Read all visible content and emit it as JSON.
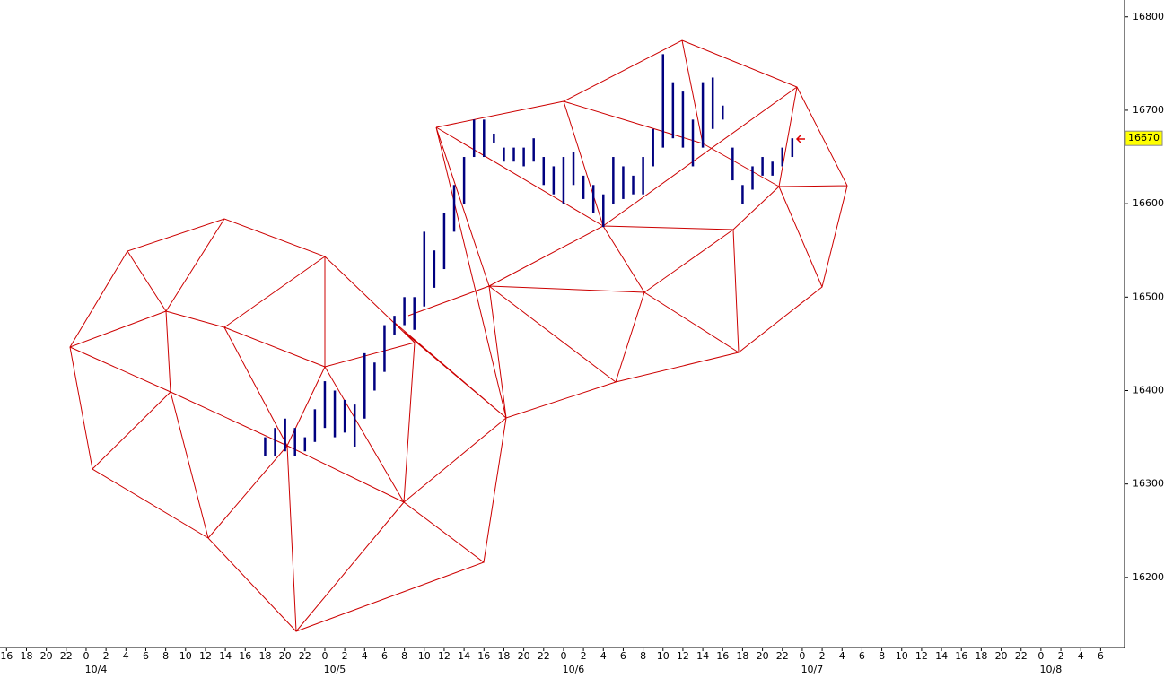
{
  "chart_data": {
    "type": "ohlc",
    "x": [
      18,
      19,
      20,
      21,
      22,
      23,
      24,
      25,
      26,
      27,
      28,
      29,
      30,
      31,
      32,
      33,
      34,
      35,
      36,
      37,
      38,
      39,
      40,
      41,
      42,
      43,
      44,
      45,
      46,
      47,
      48,
      49,
      50,
      51,
      52,
      53,
      54,
      55,
      56,
      57,
      58,
      59,
      60,
      61,
      62,
      63,
      64,
      65,
      66,
      67,
      68,
      69,
      70,
      71
    ],
    "series": [
      {
        "color": "#000080",
        "high": [
          16350,
          16360,
          16370,
          16360,
          16350,
          16380,
          16410,
          16400,
          16390,
          16385,
          16440,
          16430,
          16470,
          16480,
          16500,
          16500,
          16570,
          16550,
          16590,
          16620,
          16650,
          16690,
          16690,
          16675,
          16660,
          16660,
          16660,
          16670,
          16650,
          16640,
          16650,
          16655,
          16630,
          16620,
          16610,
          16650,
          16640,
          16630,
          16650,
          16680,
          16760,
          16730,
          16720,
          16690,
          16730,
          16735,
          16705,
          16660,
          16620,
          16640,
          16650,
          16645,
          16660,
          16670
        ],
        "low": [
          16330,
          16330,
          16335,
          16330,
          16335,
          16345,
          16360,
          16350,
          16355,
          16340,
          16370,
          16400,
          16420,
          16460,
          16470,
          16465,
          16490,
          16510,
          16530,
          16570,
          16600,
          16650,
          16650,
          16665,
          16645,
          16645,
          16640,
          16645,
          16620,
          16610,
          16600,
          16620,
          16605,
          16590,
          16575,
          16600,
          16605,
          16610,
          16610,
          16640,
          16660,
          16670,
          16660,
          16640,
          16660,
          16680,
          16690,
          16625,
          16600,
          16615,
          16630,
          16630,
          16640,
          16650
        ]
      }
    ],
    "ylim": [
      16125,
      16818
    ],
    "yticks": [
      16200,
      16300,
      16400,
      16500,
      16600,
      16700,
      16800
    ],
    "xlim": [
      -8.66,
      104.4
    ],
    "xticks": [
      {
        "value": -8,
        "label": "16"
      },
      {
        "value": -6,
        "label": "18"
      },
      {
        "value": -4,
        "label": "20"
      },
      {
        "value": -2,
        "label": "22"
      },
      0,
      2,
      4,
      6,
      8,
      10,
      12,
      14,
      16,
      18,
      20,
      22,
      {
        "value": 24,
        "label": "0"
      },
      {
        "value": 26,
        "label": "2"
      },
      {
        "value": 28,
        "label": "4"
      },
      {
        "value": 30,
        "label": "6"
      },
      {
        "value": 32,
        "label": "8"
      },
      {
        "value": 34,
        "label": "10"
      },
      {
        "value": 36,
        "label": "12"
      },
      {
        "value": 38,
        "label": "14"
      },
      {
        "value": 40,
        "label": "16"
      },
      {
        "value": 42,
        "label": "18"
      },
      {
        "value": 44,
        "label": "20"
      },
      {
        "value": 46,
        "label": "22"
      },
      {
        "value": 48,
        "label": "0"
      },
      {
        "value": 50,
        "label": "2"
      },
      {
        "value": 52,
        "label": "4"
      },
      {
        "value": 54,
        "label": "6"
      },
      {
        "value": 56,
        "label": "8"
      },
      {
        "value": 58,
        "label": "10"
      },
      {
        "value": 60,
        "label": "12"
      },
      {
        "value": 62,
        "label": "14"
      },
      {
        "value": 64,
        "label": "16"
      },
      {
        "value": 66,
        "label": "18"
      },
      {
        "value": 68,
        "label": "20"
      },
      {
        "value": 70,
        "label": "22"
      },
      {
        "value": 72,
        "label": "0"
      },
      {
        "value": 74,
        "label": "2"
      },
      {
        "value": 76,
        "label": "4"
      },
      {
        "value": 78,
        "label": "6"
      },
      {
        "value": 80,
        "label": "8"
      },
      {
        "value": 82,
        "label": "10"
      },
      {
        "value": 84,
        "label": "12"
      },
      {
        "value": 86,
        "label": "14"
      },
      {
        "value": 88,
        "label": "16"
      },
      {
        "value": 90,
        "label": "18"
      },
      {
        "value": 92,
        "label": "20"
      },
      {
        "value": 94,
        "label": "22"
      },
      {
        "value": 96,
        "label": "0"
      },
      {
        "value": 98,
        "label": "2"
      },
      {
        "value": 100,
        "label": "4"
      },
      {
        "value": 102,
        "label": "6"
      }
    ],
    "date_labels": [
      {
        "value": 0,
        "label": "10/4"
      },
      {
        "value": 24,
        "label": "10/5"
      },
      {
        "value": 48,
        "label": "10/6"
      },
      {
        "value": 72,
        "label": "10/7"
      },
      {
        "value": 96,
        "label": "10/8"
      }
    ],
    "last_price": 16670,
    "last_price_color": "#ffff00"
  }
}
